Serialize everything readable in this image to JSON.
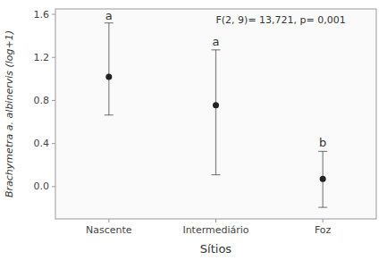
{
  "chart_data": {
    "type": "errorbar",
    "categories": [
      "Nascente",
      "Intermediário",
      "Foz"
    ],
    "values": [
      1.02,
      0.755,
      0.072
    ],
    "upper_errors": [
      0.5,
      0.515,
      0.255
    ],
    "lower_errors": [
      0.355,
      0.645,
      0.265
    ],
    "letters": [
      "a",
      "a",
      "b"
    ],
    "xlabel": "Sítios",
    "ylabel": "Brachymetra a. albinervis (log+1)",
    "annotation": "F(2, 9)= 13,721, p= 0,001",
    "ylim": [
      -0.3,
      1.65
    ],
    "yticks": [
      {
        "value": 0.0,
        "label": "0.0"
      },
      0.4,
      0.8,
      1.2,
      1.6
    ],
    "color": "#222222",
    "grid": false
  }
}
